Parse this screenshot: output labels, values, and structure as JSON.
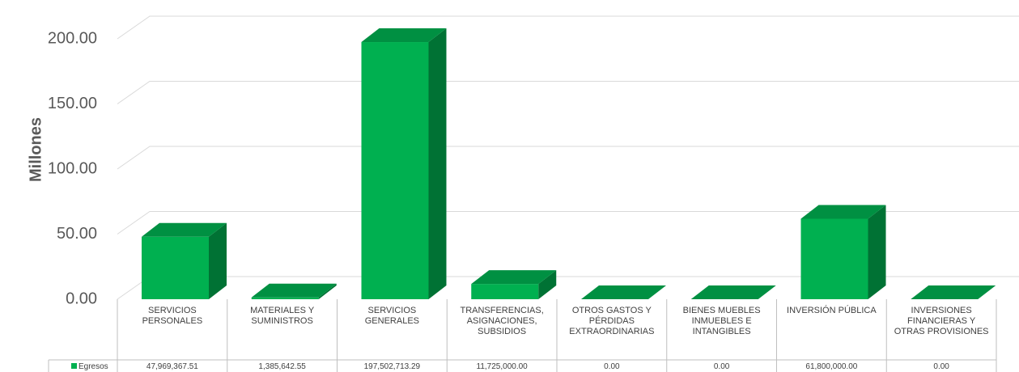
{
  "chart_data": {
    "type": "bar3d",
    "y_label": "Millones",
    "categories": [
      "SERVICIOS PERSONALES",
      "MATERIALES Y SUMINISTROS",
      "SERVICIOS GENERALES",
      "TRANSFERENCIAS, ASIGNACIONES, SUBSIDIOS",
      "OTROS GASTOS Y PÉRDIDAS EXTRAORDINARIAS",
      "BIENES MUEBLES INMUEBLES E INTANGIBLES",
      "INVERSIÓN PÚBLICA",
      "INVERSIONES FINANCIERAS Y OTRAS PROVISIONES"
    ],
    "series": [
      {
        "name": "Egresos",
        "color": "#00b050",
        "values": [
          47.96936751,
          1.38564255,
          197.50271329,
          11.725,
          0,
          0,
          61.8,
          0
        ],
        "value_labels": [
          "47,969,367.51",
          "1,385,642.55",
          "197,502,713.29",
          "11,725,000.00",
          "0.00",
          "0.00",
          "61,800,000.00",
          "0.00"
        ]
      }
    ],
    "ylim": [
      0,
      200
    ],
    "yticks": [
      {
        "value": 0,
        "label": "0.00"
      },
      {
        "value": 50,
        "label": "50.00"
      },
      {
        "value": 100,
        "label": "100.00"
      },
      {
        "value": 150,
        "label": "150.00"
      },
      {
        "value": 200,
        "label": "200.00"
      }
    ],
    "grid": true
  }
}
